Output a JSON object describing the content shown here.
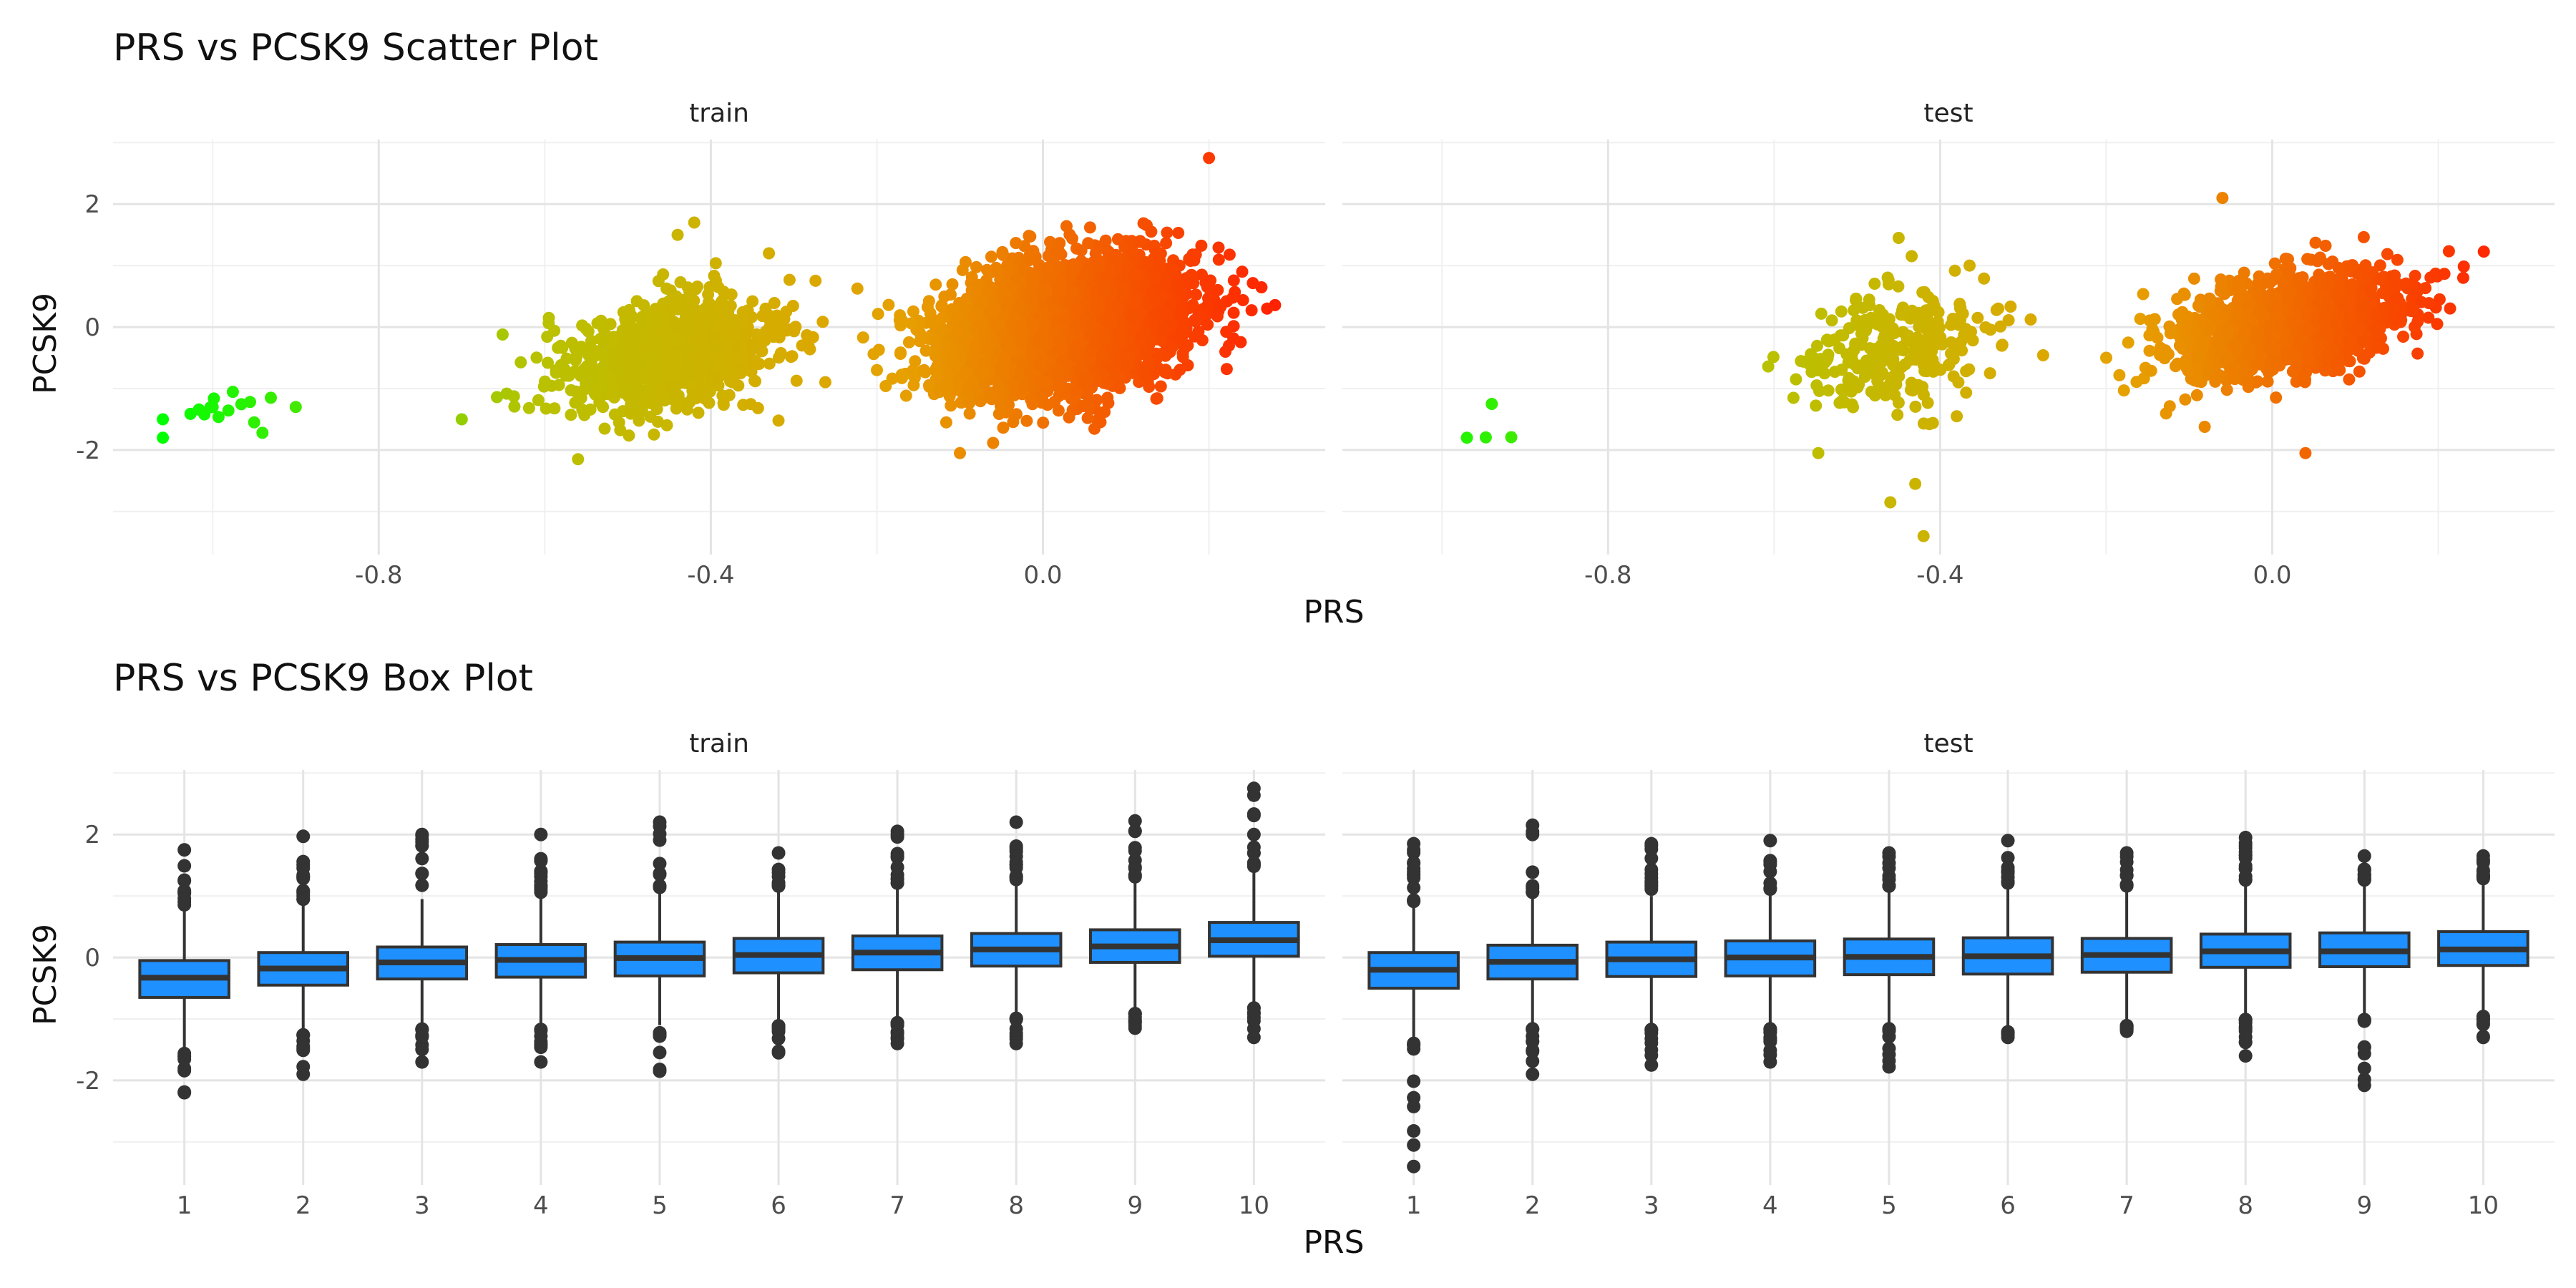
{
  "chart_data": [
    {
      "type": "scatter",
      "title": "PRS vs PCSK9 Scatter Plot",
      "xlabel": "PRS",
      "ylabel": "PCSK9",
      "facets": [
        "train",
        "test"
      ],
      "xlim": [
        -1.12,
        0.34
      ],
      "ylim": [
        -3.7,
        3.05
      ],
      "x_ticks": [
        -0.8,
        -0.4,
        0.0
      ],
      "x_tick_labels": [
        "-0.8",
        "-0.4",
        "0.0"
      ],
      "y_ticks": [
        -2,
        0,
        2
      ],
      "y_tick_labels": [
        "-2",
        "0",
        "2"
      ],
      "grid": true,
      "color_gradient": [
        "#00ff00",
        "#b8c200",
        "#e6a000",
        "#ff2200"
      ],
      "clusters": {
        "train": [
          {
            "cx": -1.0,
            "cy": -1.4,
            "sx": 0.04,
            "sy": 0.2,
            "n": 9
          },
          {
            "cx": -0.45,
            "cy": -0.45,
            "sx": 0.065,
            "sy": 0.45,
            "n": 900
          },
          {
            "cx": 0.02,
            "cy": 0.0,
            "sx": 0.075,
            "sy": 0.5,
            "n": 3500
          }
        ],
        "test": [
          {
            "cx": -0.93,
            "cy": -1.5,
            "sx": 0.015,
            "sy": 0.3,
            "n": 2
          },
          {
            "cx": -0.46,
            "cy": -0.4,
            "sx": 0.06,
            "sy": 0.45,
            "n": 280
          },
          {
            "cx": 0.02,
            "cy": 0.05,
            "sx": 0.07,
            "sy": 0.42,
            "n": 1300
          }
        ]
      },
      "outliers": {
        "train": [
          {
            "x": -1.06,
            "y": -1.5
          },
          {
            "x": -1.06,
            "y": -1.8
          },
          {
            "x": -1.0,
            "y": -1.3
          },
          {
            "x": -1.01,
            "y": -1.42
          },
          {
            "x": -0.95,
            "y": -1.55
          },
          {
            "x": -0.93,
            "y": -1.15
          },
          {
            "x": -0.9,
            "y": -1.3
          },
          {
            "x": -0.94,
            "y": -1.72
          },
          {
            "x": -0.7,
            "y": -1.5
          },
          {
            "x": -0.56,
            "y": -2.15
          },
          {
            "x": -0.44,
            "y": 1.5
          },
          {
            "x": -0.42,
            "y": 1.7
          },
          {
            "x": -0.33,
            "y": 1.2
          },
          {
            "x": -0.29,
            "y": -0.3
          },
          {
            "x": 0.2,
            "y": 2.75
          },
          {
            "x": 0.24,
            "y": 0.9
          },
          {
            "x": -0.1,
            "y": -2.05
          },
          {
            "x": -0.2,
            "y": -0.7
          },
          {
            "x": 0.27,
            "y": 0.3
          }
        ],
        "test": [
          {
            "x": -0.94,
            "y": -1.25
          },
          {
            "x": -0.97,
            "y": -1.8
          },
          {
            "x": -0.45,
            "y": 1.45
          },
          {
            "x": -0.46,
            "y": -2.85
          },
          {
            "x": -0.43,
            "y": -2.55
          },
          {
            "x": -0.42,
            "y": -3.4
          },
          {
            "x": -0.38,
            "y": -1.45
          },
          {
            "x": -0.33,
            "y": 0.3
          },
          {
            "x": -0.06,
            "y": 2.1
          },
          {
            "x": 0.04,
            "y": -2.05
          },
          {
            "x": 0.23,
            "y": 0.8
          },
          {
            "x": -0.2,
            "y": -0.5
          }
        ]
      }
    },
    {
      "type": "box",
      "title": "PRS vs PCSK9 Box Plot",
      "xlabel": "PRS",
      "ylabel": "PCSK9",
      "facets": [
        "train",
        "test"
      ],
      "categories": [
        "1",
        "2",
        "3",
        "4",
        "5",
        "6",
        "7",
        "8",
        "9",
        "10"
      ],
      "ylim": [
        -3.7,
        3.05
      ],
      "y_ticks": [
        -2,
        0,
        2
      ],
      "y_tick_labels": [
        "-2",
        "0",
        "2"
      ],
      "grid": true,
      "box_color": "#1e90ff",
      "series": {
        "train": [
          {
            "q1": -0.65,
            "median": -0.33,
            "q3": -0.05,
            "whislo": -1.5,
            "whishi": 0.78,
            "out_hi": 1.75,
            "out_lo": -2.2
          },
          {
            "q1": -0.45,
            "median": -0.18,
            "q3": 0.08,
            "whislo": -1.2,
            "whishi": 0.88,
            "out_hi": 1.97,
            "out_lo": -1.9
          },
          {
            "q1": -0.35,
            "median": -0.08,
            "q3": 0.17,
            "whislo": -1.1,
            "whishi": 0.95,
            "out_hi": 2.0,
            "out_lo": -1.7
          },
          {
            "q1": -0.32,
            "median": -0.04,
            "q3": 0.21,
            "whislo": -1.1,
            "whishi": 1.0,
            "out_hi": 2.0,
            "out_lo": -1.7
          },
          {
            "q1": -0.3,
            "median": -0.01,
            "q3": 0.25,
            "whislo": -1.1,
            "whishi": 1.05,
            "out_hi": 2.2,
            "out_lo": -1.85
          },
          {
            "q1": -0.25,
            "median": 0.04,
            "q3": 0.31,
            "whislo": -1.05,
            "whishi": 1.1,
            "out_hi": 1.7,
            "out_lo": -1.55
          },
          {
            "q1": -0.2,
            "median": 0.08,
            "q3": 0.35,
            "whislo": -1.0,
            "whishi": 1.15,
            "out_hi": 2.05,
            "out_lo": -1.4
          },
          {
            "q1": -0.14,
            "median": 0.13,
            "q3": 0.39,
            "whislo": -0.9,
            "whishi": 1.2,
            "out_hi": 2.2,
            "out_lo": -1.4
          },
          {
            "q1": -0.08,
            "median": 0.18,
            "q3": 0.45,
            "whislo": -0.85,
            "whishi": 1.25,
            "out_hi": 2.22,
            "out_lo": -1.15
          },
          {
            "q1": 0.02,
            "median": 0.28,
            "q3": 0.57,
            "whislo": -0.75,
            "whishi": 1.4,
            "out_hi": 2.75,
            "out_lo": -1.3
          }
        ],
        "test": [
          {
            "q1": -0.5,
            "median": -0.2,
            "q3": 0.08,
            "whislo": -1.3,
            "whishi": 0.85,
            "out_hi": 1.85,
            "out_lo": -3.4
          },
          {
            "q1": -0.35,
            "median": -0.07,
            "q3": 0.2,
            "whislo": -1.1,
            "whishi": 1.0,
            "out_hi": 2.15,
            "out_lo": -1.9
          },
          {
            "q1": -0.31,
            "median": -0.03,
            "q3": 0.25,
            "whislo": -1.1,
            "whishi": 1.0,
            "out_hi": 1.85,
            "out_lo": -1.75
          },
          {
            "q1": -0.3,
            "median": 0.0,
            "q3": 0.27,
            "whislo": -1.1,
            "whishi": 1.05,
            "out_hi": 1.9,
            "out_lo": -1.7
          },
          {
            "q1": -0.28,
            "median": 0.01,
            "q3": 0.3,
            "whislo": -1.1,
            "whishi": 1.1,
            "out_hi": 1.7,
            "out_lo": -1.78
          },
          {
            "q1": -0.27,
            "median": 0.02,
            "q3": 0.32,
            "whislo": -1.15,
            "whishi": 1.15,
            "out_hi": 1.9,
            "out_lo": -1.3
          },
          {
            "q1": -0.24,
            "median": 0.04,
            "q3": 0.31,
            "whislo": -1.05,
            "whishi": 1.1,
            "out_hi": 1.7,
            "out_lo": -1.2
          },
          {
            "q1": -0.16,
            "median": 0.1,
            "q3": 0.38,
            "whislo": -0.95,
            "whishi": 1.2,
            "out_hi": 1.95,
            "out_lo": -1.6
          },
          {
            "q1": -0.15,
            "median": 0.1,
            "q3": 0.4,
            "whislo": -0.95,
            "whishi": 1.2,
            "out_hi": 1.65,
            "out_lo": -2.08
          },
          {
            "q1": -0.13,
            "median": 0.13,
            "q3": 0.42,
            "whislo": -0.9,
            "whishi": 1.22,
            "out_hi": 1.65,
            "out_lo": -1.3
          }
        ]
      }
    }
  ]
}
